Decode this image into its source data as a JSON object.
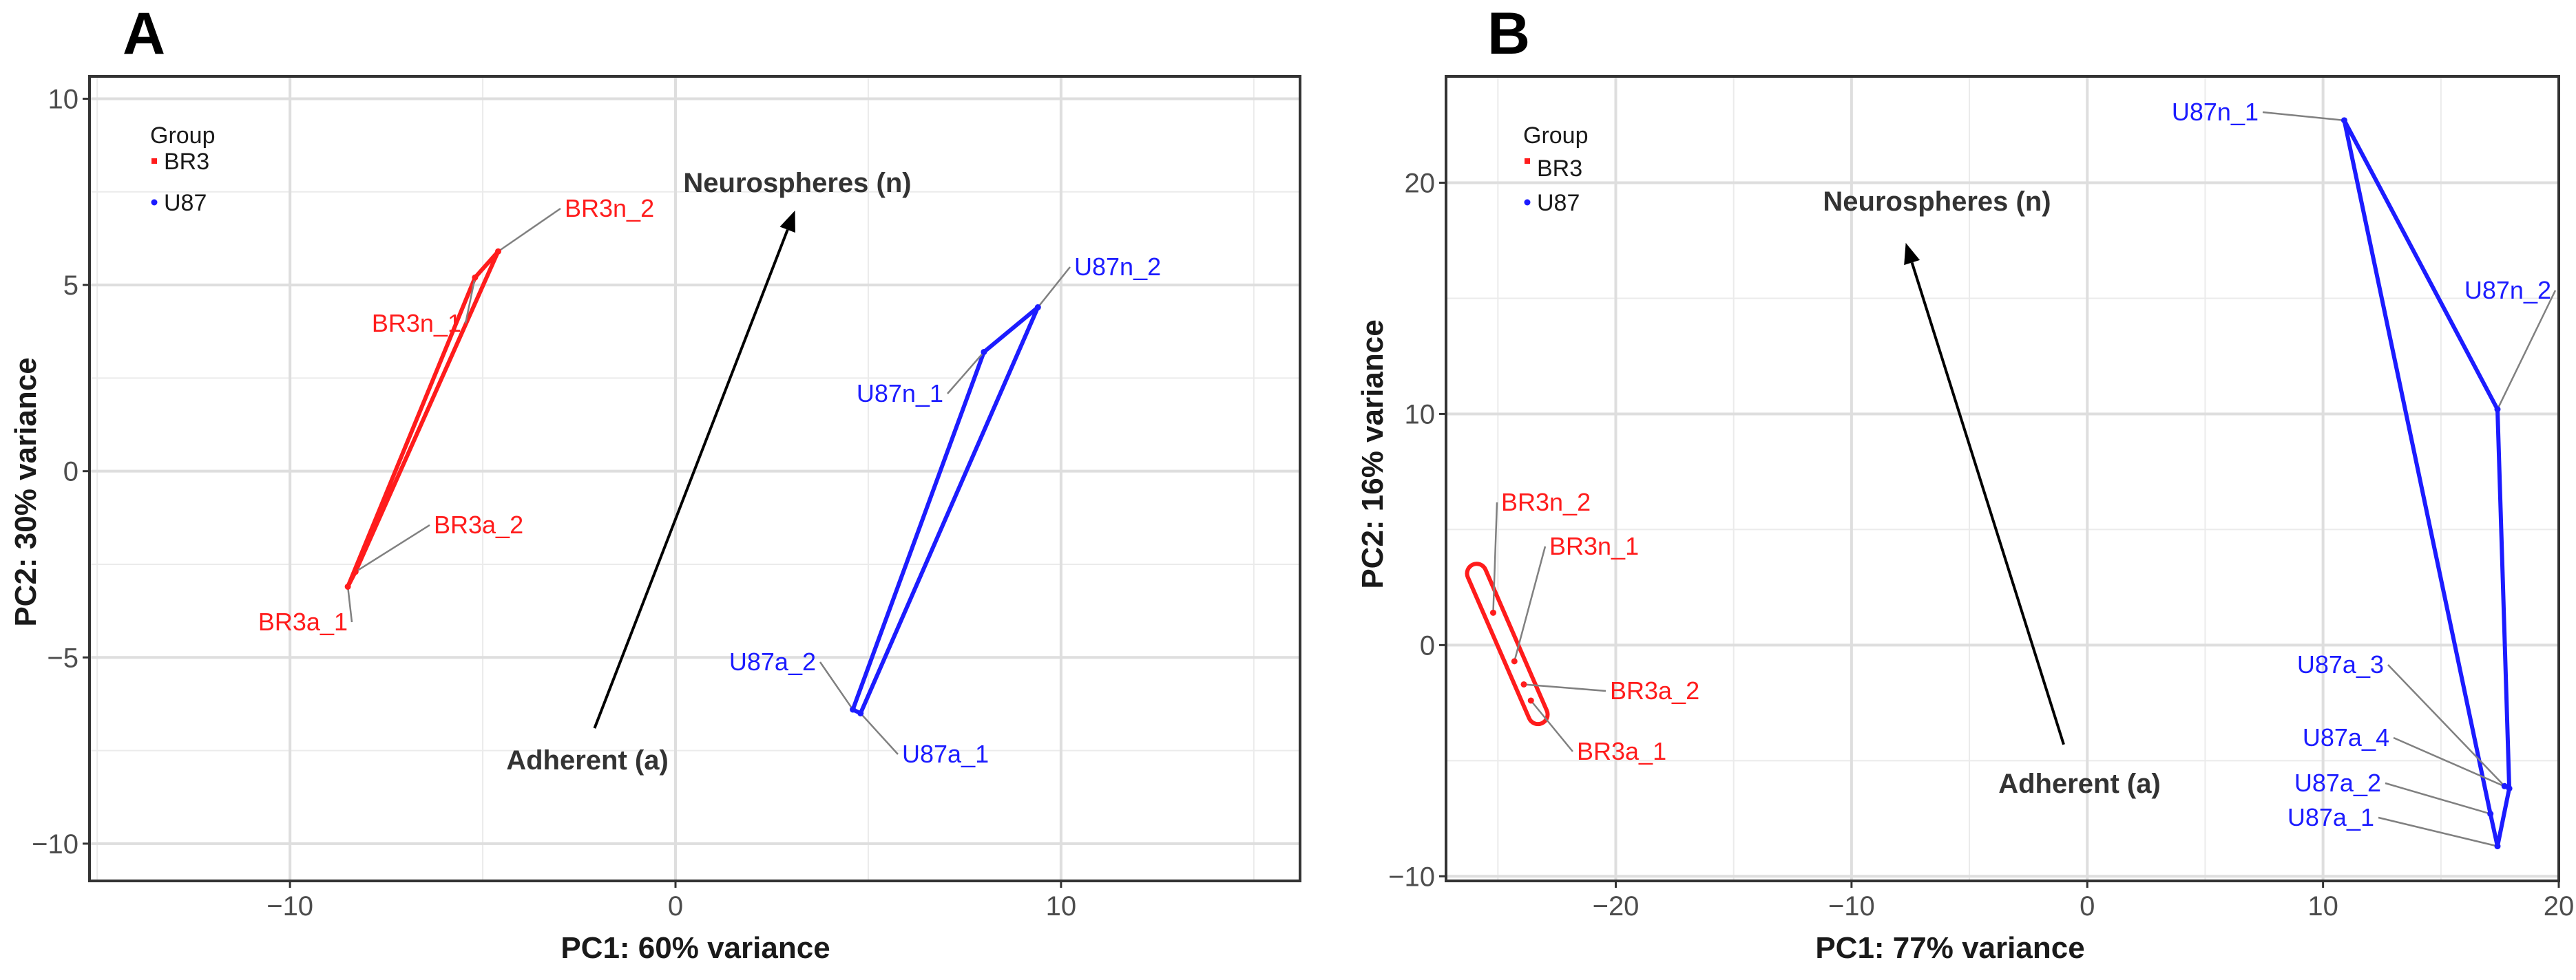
{
  "colors": {
    "BR3": "#ff1c1c",
    "U87": "#1c1cff"
  },
  "chart_data": [
    {
      "type": "scatter",
      "panel": "A",
      "xlabel": "PC1: 60% variance",
      "ylabel": "PC2: 30% variance",
      "xlim": [
        -15.2,
        16.2
      ],
      "ylim": [
        -11.0,
        10.6
      ],
      "xticks": [
        -10,
        0,
        10
      ],
      "xtick_labels": [
        "−10",
        "0",
        "10"
      ],
      "yticks": [
        -10,
        -5,
        0,
        5,
        10
      ],
      "ytick_labels": [
        "−10",
        "−5",
        "0",
        "5",
        "10"
      ],
      "legend": {
        "title": "Group",
        "position": "top-left",
        "entries": [
          "BR3",
          "U87"
        ]
      },
      "series": [
        {
          "name": "BR3",
          "points": [
            {
              "label": "BR3n_2",
              "x": -4.6,
              "y": 5.9
            },
            {
              "label": "BR3n_1",
              "x": -5.2,
              "y": 5.2
            },
            {
              "label": "BR3a_2",
              "x": -8.3,
              "y": -2.7
            },
            {
              "label": "BR3a_1",
              "x": -8.5,
              "y": -3.1
            }
          ],
          "hull": [
            [
              -4.6,
              5.9
            ],
            [
              -5.2,
              5.2
            ],
            [
              -8.5,
              -3.1
            ],
            [
              -8.3,
              -2.7
            ]
          ]
        },
        {
          "name": "U87",
          "points": [
            {
              "label": "U87n_2",
              "x": 9.4,
              "y": 4.4
            },
            {
              "label": "U87n_1",
              "x": 8.0,
              "y": 3.2
            },
            {
              "label": "U87a_2",
              "x": 4.6,
              "y": -6.4
            },
            {
              "label": "U87a_1",
              "x": 4.8,
              "y": -6.5
            }
          ],
          "hull": [
            [
              9.4,
              4.4
            ],
            [
              8.0,
              3.2
            ],
            [
              4.6,
              -6.4
            ],
            [
              4.8,
              -6.5
            ]
          ]
        }
      ],
      "arrow": {
        "from": [
          -2.1,
          -6.9
        ],
        "to": [
          3.1,
          7.0
        ],
        "start_label": "Adherent (a)",
        "end_label": "Neurospheres (n)"
      }
    },
    {
      "type": "scatter",
      "panel": "B",
      "xlabel": "PC1: 77% variance",
      "ylabel": "PC2: 16% variance",
      "xlim": [
        -27.2,
        20.0
      ],
      "ylim": [
        -10.2,
        24.6
      ],
      "xticks": [
        -20,
        -10,
        0,
        10,
        20
      ],
      "xtick_labels": [
        "−20",
        "−10",
        "0",
        "10",
        "20"
      ],
      "yticks": [
        -10,
        0,
        10,
        20
      ],
      "ytick_labels": [
        "−10",
        "0",
        "10",
        "20"
      ],
      "legend": {
        "title": "Group",
        "position": "top-left",
        "entries": [
          "BR3",
          "U87"
        ]
      },
      "series": [
        {
          "name": "BR3",
          "points": [
            {
              "label": "BR3n_2",
              "x": -25.2,
              "y": 1.4
            },
            {
              "label": "BR3n_1",
              "x": -24.3,
              "y": -0.7
            },
            {
              "label": "BR3a_2",
              "x": -23.9,
              "y": -1.7
            },
            {
              "label": "BR3a_1",
              "x": -23.6,
              "y": -2.4
            }
          ],
          "hull": [
            [
              -25.9,
              3.1
            ],
            [
              -23.3,
              -3.0
            ]
          ]
        },
        {
          "name": "U87",
          "points": [
            {
              "label": "U87n_1",
              "x": 10.9,
              "y": 22.7
            },
            {
              "label": "U87n_2",
              "x": 17.4,
              "y": 10.2
            },
            {
              "label": "U87a_3",
              "x": 17.7,
              "y": -6.1
            },
            {
              "label": "U87a_4",
              "x": 17.9,
              "y": -6.2
            },
            {
              "label": "U87a_2",
              "x": 17.1,
              "y": -7.3
            },
            {
              "label": "U87a_1",
              "x": 17.4,
              "y": -8.7
            }
          ],
          "hull": [
            [
              10.9,
              22.7
            ],
            [
              17.4,
              10.2
            ],
            [
              17.9,
              -6.2
            ],
            [
              17.4,
              -8.7
            ],
            [
              17.1,
              -7.3
            ]
          ]
        }
      ],
      "arrow": {
        "from": [
          -1.0,
          -4.3
        ],
        "to": [
          -7.7,
          17.4
        ],
        "start_label": "Adherent (a)",
        "end_label": "Neurospheres (n)"
      }
    }
  ]
}
